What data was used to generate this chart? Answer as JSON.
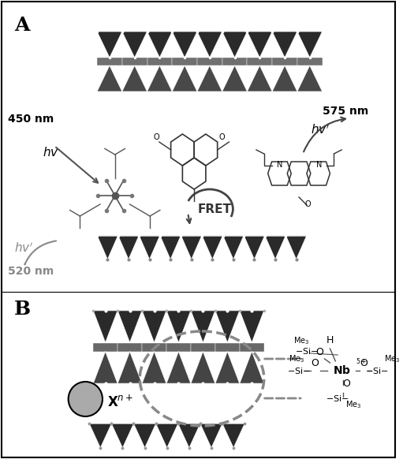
{
  "figsize": [
    5.11,
    5.82
  ],
  "dpi": 100,
  "bg_color": "#ffffff",
  "label_A": "A",
  "label_B": "B",
  "text_450nm": "450 nm",
  "text_520nm": "520 nm",
  "text_575nm": "575 nm",
  "text_hv1": "hv",
  "text_hv2": "hv’",
  "text_hv3": "hv’",
  "text_FRET": "FRET",
  "text_Xn": "X",
  "text_nplus": "n+",
  "text_nb": "Nb",
  "text_5plus": "5+",
  "dark_gray": "#2b2b2b",
  "med_gray": "#555555",
  "light_gray": "#888888",
  "arrow_gray": "#666666"
}
